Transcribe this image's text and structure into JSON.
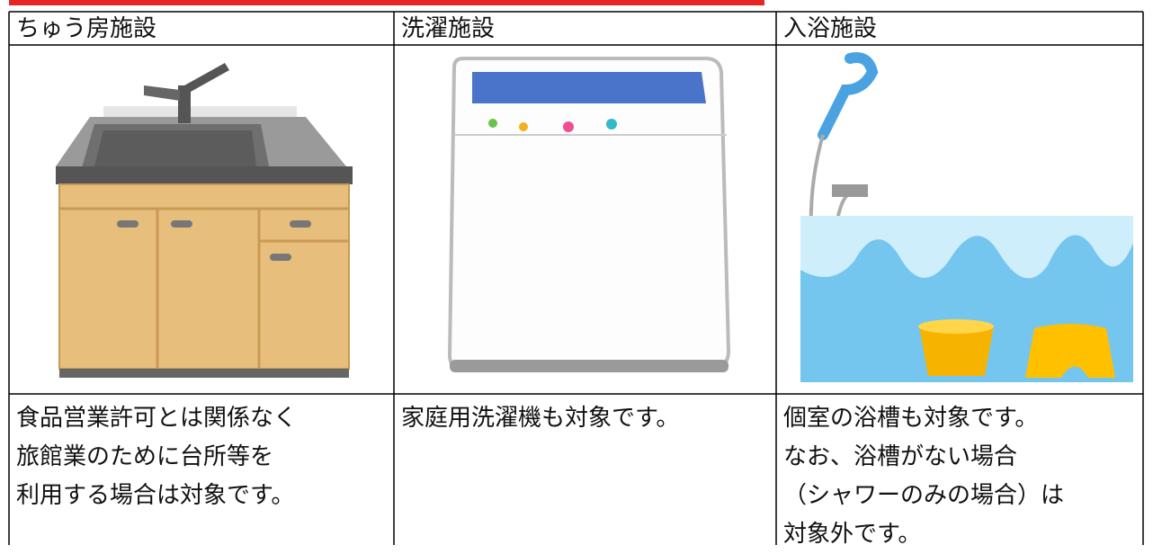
{
  "table": {
    "headers": [
      "ちゅう房施設",
      "洗濯施設",
      "入浴施設"
    ],
    "descriptions": [
      [
        "食品営業許可とは関係なく",
        "旅館業のために台所等を",
        "利用する場合は対象です。"
      ],
      [
        "家庭用洗濯機も対象です。"
      ],
      [
        "個室の浴槽も対象です。",
        "なお、浴槽がない場合",
        "（シャワーのみの場合）は",
        "対象外です。"
      ]
    ]
  }
}
